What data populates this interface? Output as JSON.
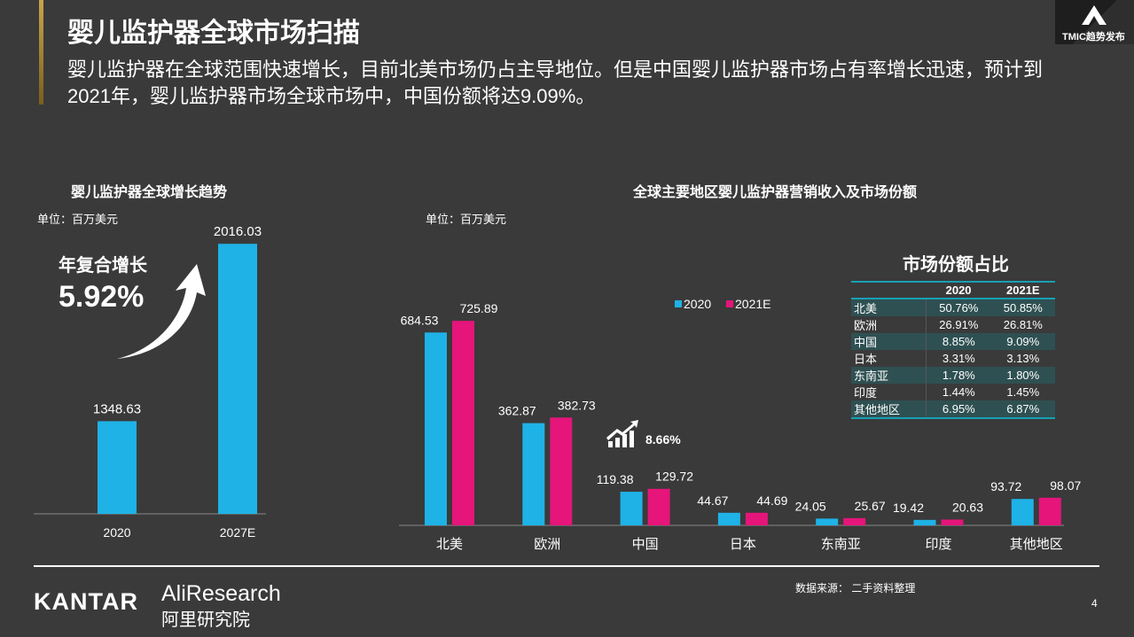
{
  "header": {
    "title": "婴儿监护器全球市场扫描",
    "subtitle": "婴儿监护器在全球范围快速增长，目前北美市场仍占主导地位。但是中国婴儿监护器市场占有率增长迅速，预计到2021年，婴儿监护器市场全球市场中，中国份额将达9.09%。",
    "logo_text": "TMIC趋势发布"
  },
  "colors": {
    "series_2020": "#1fb2e6",
    "series_2021E": "#e5157a",
    "background": "#3a3a3a"
  },
  "chart_data": [
    {
      "type": "bar",
      "title": "婴儿监护器全球增长趋势",
      "unit": "单位：百万美元",
      "categories": [
        "2020",
        "2027E"
      ],
      "values": [
        1348.63,
        2016.03
      ],
      "annotation": {
        "label": "年复合增长",
        "value": "5.92%",
        "icon": "curved-up-arrow-icon"
      }
    },
    {
      "type": "bar",
      "title": "全球主要地区婴儿监护器营销收入及市场份额",
      "unit": "单位：百万美元",
      "legend": "top-right",
      "categories": [
        "北美",
        "欧洲",
        "中国",
        "日本",
        "东南亚",
        "印度",
        "其他地区"
      ],
      "series": [
        {
          "name": "2020",
          "values": [
            684.53,
            362.87,
            119.38,
            44.67,
            24.05,
            19.42,
            93.72
          ]
        },
        {
          "name": "2021E",
          "values": [
            725.89,
            382.73,
            129.72,
            44.69,
            25.67,
            20.63,
            98.07
          ]
        }
      ],
      "annotation": {
        "value": "8.66%",
        "icon": "growth-chart-icon"
      }
    }
  ],
  "share_table": {
    "title": "市场份额占比",
    "headers": [
      "",
      "2020",
      "2021E"
    ],
    "rows": [
      [
        "北美",
        "50.76%",
        "50.85%"
      ],
      [
        "欧洲",
        "26.91%",
        "26.81%"
      ],
      [
        "中国",
        "8.85%",
        "9.09%"
      ],
      [
        "日本",
        "3.31%",
        "3.13%"
      ],
      [
        "东南亚",
        "1.78%",
        "1.80%"
      ],
      [
        "印度",
        "1.44%",
        "1.45%"
      ],
      [
        "其他地区",
        "6.95%",
        "6.87%"
      ]
    ]
  },
  "footer": {
    "kantar": "KANTAR",
    "ali_en": "AliResearch",
    "ali_cn": "阿里研究院",
    "source": "数据来源： 二手资料整理",
    "page": "4"
  }
}
